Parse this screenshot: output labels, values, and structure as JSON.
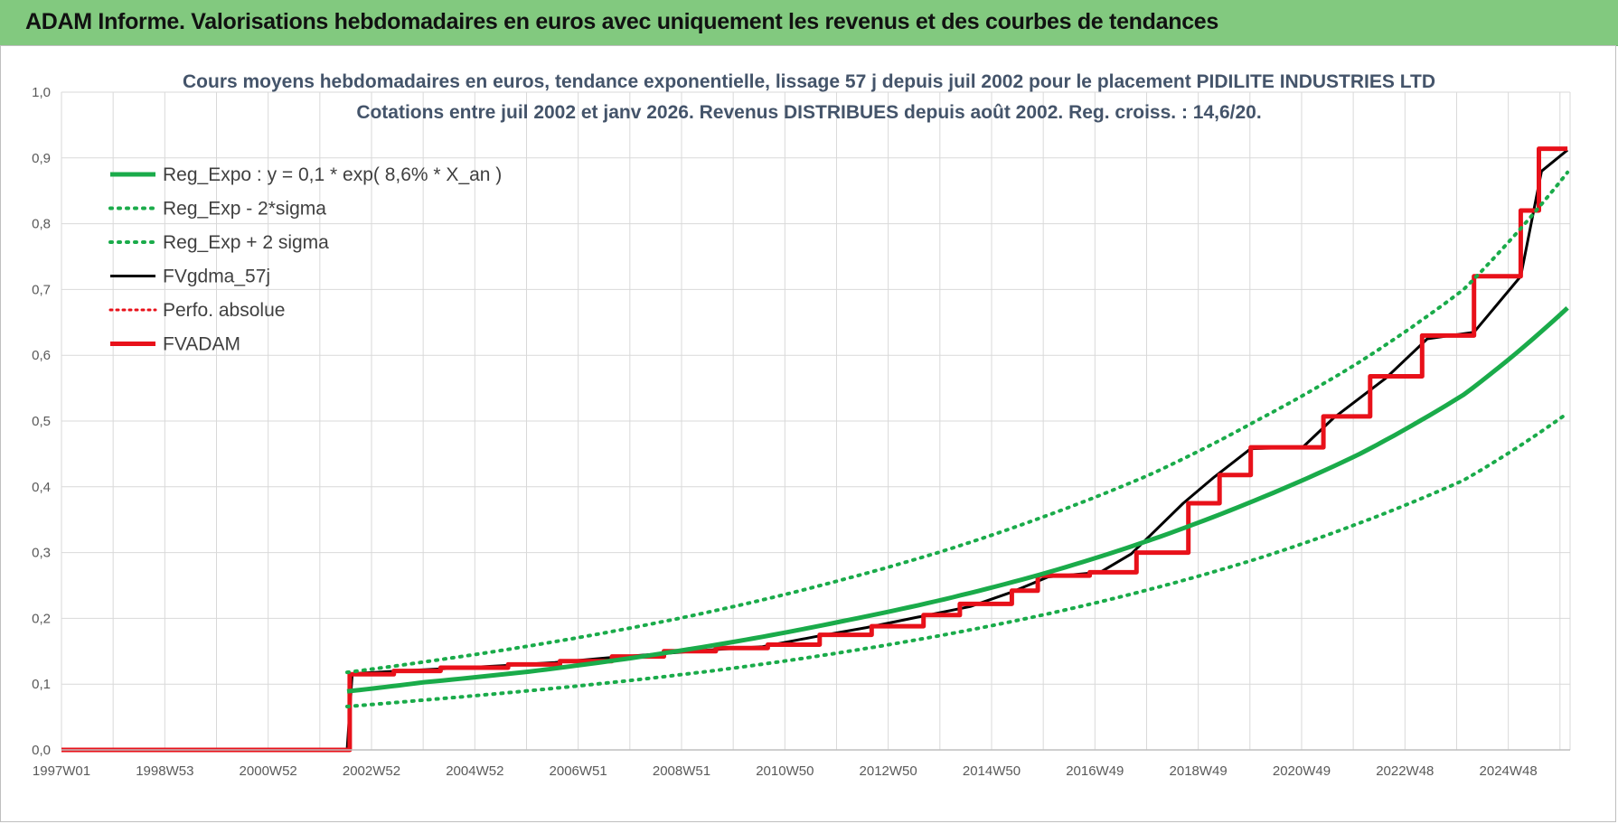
{
  "page": {
    "banner_title": "ADAM Informe. Valorisations hebdomadaires en euros avec uniquement les revenus et des courbes de tendances"
  },
  "colors": {
    "banner": "#82c97f",
    "green": "#1aab4a",
    "black": "#000000",
    "red": "#e8111a",
    "grid": "#d9d9d9"
  },
  "chart_data": {
    "type": "line",
    "title": "Cours moyens hebdomadaires en euros, tendance exponentielle, lissage 57 j depuis juil 2002 pour le placement PIDILITE INDUSTRIES LTD",
    "subtitle": "Cotations entre juil 2002 et janv 2026. Revenus DISTRIBUES depuis août 2002. Reg. croiss. : 14,6/20.",
    "xlabel": "",
    "ylabel": "",
    "x_range": [
      "1997W01",
      "2026W03"
    ],
    "ylim": [
      0,
      1.0
    ],
    "y_ticks": [
      "0,0",
      "0,1",
      "0,2",
      "0,3",
      "0,4",
      "0,5",
      "0,6",
      "0,7",
      "0,8",
      "0,9",
      "1,0"
    ],
    "x_ticks": [
      "1997W01",
      "1998W53",
      "2000W52",
      "2002W52",
      "2004W52",
      "2006W51",
      "2008W51",
      "2010W50",
      "2012W50",
      "2014W50",
      "2016W49",
      "2018W49",
      "2020W49",
      "2022W48",
      "2024W48"
    ],
    "grid": true,
    "legend_position": "top-left",
    "series": [
      {
        "name": "Reg_Expo : y = 0,1 * exp( 8,6% *  X_an )",
        "style": "solid-green",
        "x": [
          2002.5,
          2004.0,
          2006.0,
          2008.0,
          2010.0,
          2012.0,
          2014.0,
          2016.0,
          2018.0,
          2020.0,
          2022.0,
          2024.0,
          2026.0
        ],
        "values": [
          0.089,
          0.103,
          0.119,
          0.14,
          0.165,
          0.195,
          0.229,
          0.27,
          0.32,
          0.38,
          0.45,
          0.54,
          0.672
        ]
      },
      {
        "name": "Reg_Exp - 2*sigma",
        "style": "dotted-green",
        "x": [
          2002.5,
          2004.0,
          2006.0,
          2008.0,
          2010.0,
          2012.0,
          2014.0,
          2016.0,
          2018.0,
          2020.0,
          2022.0,
          2024.0,
          2026.0
        ],
        "values": [
          0.066,
          0.076,
          0.09,
          0.106,
          0.125,
          0.148,
          0.175,
          0.207,
          0.245,
          0.29,
          0.345,
          0.41,
          0.512
        ]
      },
      {
        "name": "Reg_Exp + 2 sigma",
        "style": "dotted-green",
        "x": [
          2002.5,
          2004.0,
          2006.0,
          2008.0,
          2010.0,
          2012.0,
          2014.0,
          2016.0,
          2018.0,
          2020.0,
          2022.0,
          2024.0,
          2026.0
        ],
        "values": [
          0.118,
          0.134,
          0.158,
          0.186,
          0.219,
          0.258,
          0.303,
          0.357,
          0.42,
          0.5,
          0.59,
          0.7,
          0.878
        ]
      },
      {
        "name": "FVgdma_57j",
        "style": "solid-black",
        "x": [
          1997.0,
          2002.5,
          2002.6,
          2003.5,
          2004.5,
          2005.5,
          2006.5,
          2007.5,
          2008.5,
          2009.5,
          2010.5,
          2011.5,
          2012.5,
          2013.5,
          2014.5,
          2015.3,
          2016.0,
          2017.0,
          2017.6,
          2018.6,
          2019.2,
          2019.9,
          2020.9,
          2021.5,
          2022.5,
          2023.3,
          2024.2,
          2025.1,
          2025.5,
          2026.0
        ],
        "values": [
          0.0,
          0.0,
          0.116,
          0.12,
          0.124,
          0.128,
          0.133,
          0.14,
          0.146,
          0.152,
          0.157,
          0.172,
          0.186,
          0.202,
          0.218,
          0.24,
          0.263,
          0.27,
          0.298,
          0.375,
          0.415,
          0.458,
          0.46,
          0.505,
          0.565,
          0.625,
          0.635,
          0.72,
          0.88,
          0.912
        ]
      },
      {
        "name": "Perfo. absolue",
        "style": "dotted-red",
        "x": [],
        "values": []
      },
      {
        "name": "FVADAM",
        "style": "solid-red-step",
        "x": [
          1997.0,
          2002.55,
          2002.55,
          2003.4,
          2003.4,
          2004.3,
          2004.3,
          2005.6,
          2005.6,
          2006.6,
          2006.6,
          2007.6,
          2007.6,
          2008.6,
          2008.6,
          2009.6,
          2009.6,
          2010.6,
          2010.6,
          2011.6,
          2011.6,
          2012.6,
          2012.6,
          2013.6,
          2013.6,
          2014.3,
          2014.3,
          2015.3,
          2015.3,
          2015.8,
          2015.8,
          2016.8,
          2016.8,
          2017.7,
          2017.7,
          2018.7,
          2018.7,
          2019.3,
          2019.3,
          2019.9,
          2019.9,
          2021.3,
          2021.3,
          2022.2,
          2022.2,
          2023.2,
          2023.2,
          2024.2,
          2024.2,
          2025.1,
          2025.1,
          2025.45,
          2025.45,
          2026.0
        ],
        "values": [
          0.0,
          0.0,
          0.115,
          0.115,
          0.12,
          0.12,
          0.125,
          0.125,
          0.13,
          0.13,
          0.135,
          0.135,
          0.142,
          0.142,
          0.15,
          0.15,
          0.155,
          0.155,
          0.16,
          0.16,
          0.175,
          0.175,
          0.188,
          0.188,
          0.205,
          0.205,
          0.222,
          0.222,
          0.242,
          0.242,
          0.265,
          0.265,
          0.27,
          0.27,
          0.3,
          0.3,
          0.375,
          0.375,
          0.418,
          0.418,
          0.46,
          0.46,
          0.507,
          0.507,
          0.568,
          0.568,
          0.63,
          0.63,
          0.72,
          0.72,
          0.82,
          0.82,
          0.914,
          0.914
        ]
      }
    ]
  }
}
